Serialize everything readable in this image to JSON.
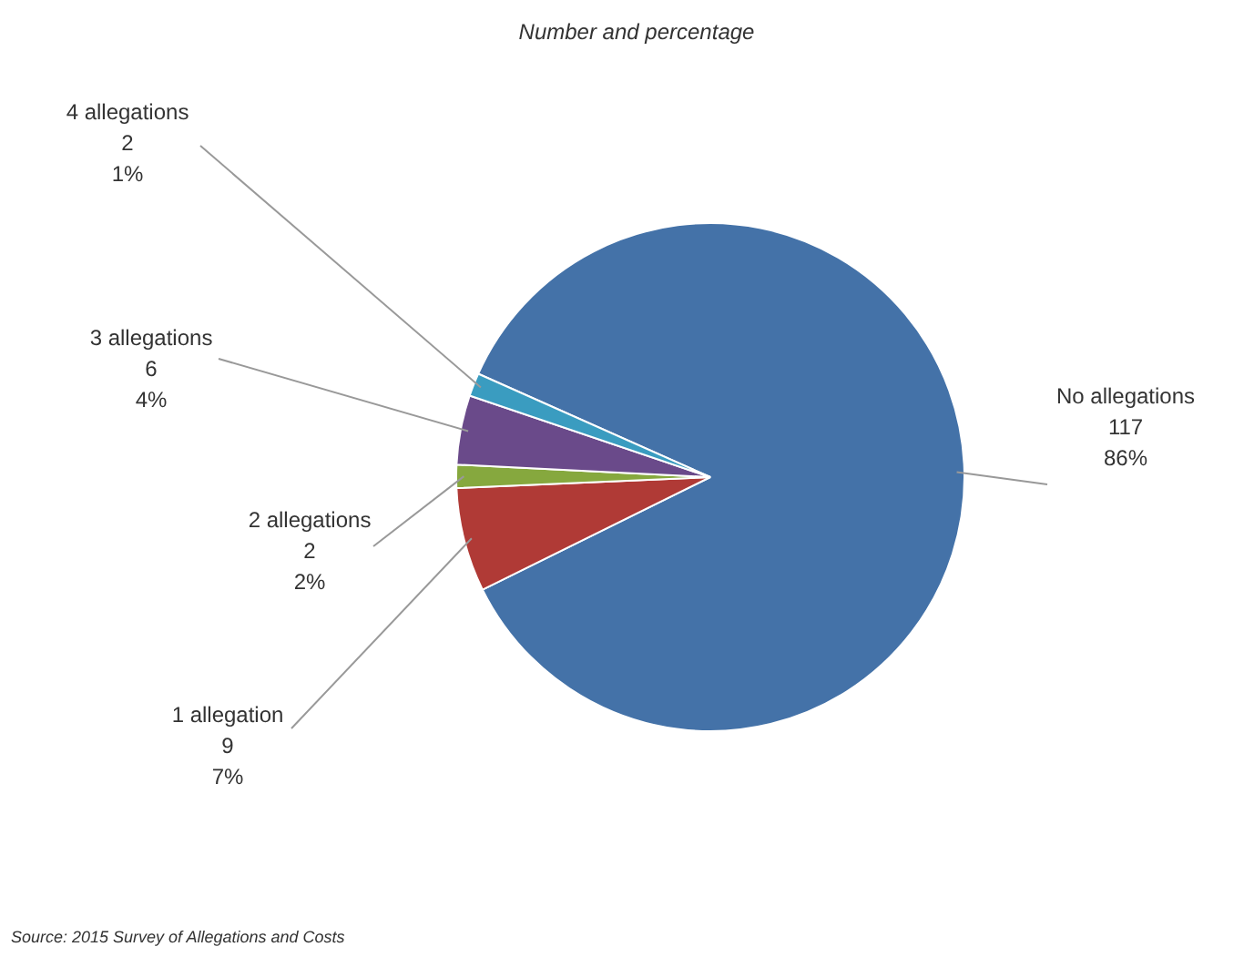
{
  "chart_data": {
    "type": "pie",
    "title": "Number and percentage",
    "categories": [
      "No allegations",
      "1 allegation",
      "2 allegations",
      "3 allegations",
      "4 allegations"
    ],
    "values": [
      117,
      9,
      2,
      6,
      2
    ],
    "value_labels": [
      "117\n86%",
      "9\n7%",
      "2\n2%",
      "6\n4%",
      "2\n1%"
    ],
    "colors": [
      "#4472a8",
      "#b03a36",
      "#86a83e",
      "#6a4a8a",
      "#3a9cc0"
    ],
    "legend": false,
    "annotations": [
      "Source: 2015 Survey of Allegations and Costs"
    ]
  }
}
